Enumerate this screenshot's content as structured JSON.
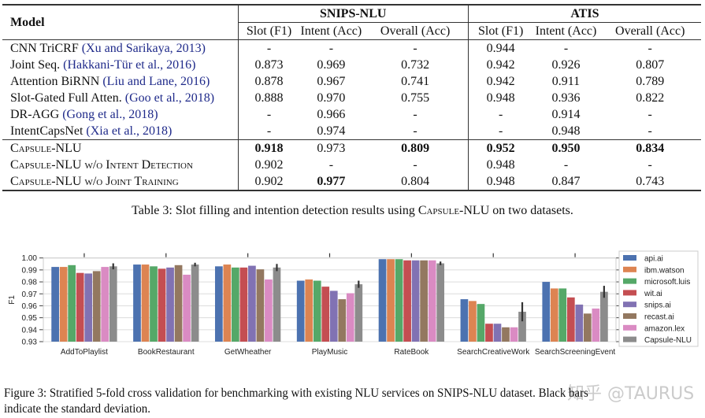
{
  "table": {
    "header": {
      "model": "Model",
      "datasets": [
        "SNIPS-NLU",
        "ATIS"
      ],
      "metrics": [
        "Slot (F1)",
        "Intent (Acc)",
        "Overall (Acc)",
        "Slot (F1)",
        "Intent (Acc)",
        "Overall (Acc)"
      ]
    },
    "rows": [
      {
        "name": "CNN TriCRF",
        "cite": "(Xu and Sarikaya, 2013)",
        "values": [
          "-",
          "-",
          "-",
          "0.944",
          "-",
          "-"
        ],
        "bold": []
      },
      {
        "name": "Joint Seq.",
        "cite": "(Hakkani-Tür et al., 2016)",
        "values": [
          "0.873",
          "0.969",
          "0.732",
          "0.942",
          "0.926",
          "0.807"
        ],
        "bold": []
      },
      {
        "name": "Attention BiRNN",
        "cite": "(Liu and Lane, 2016)",
        "values": [
          "0.878",
          "0.967",
          "0.741",
          "0.942",
          "0.911",
          "0.789"
        ],
        "bold": []
      },
      {
        "name": "Slot-Gated Full Atten.",
        "cite": "(Goo et al., 2018)",
        "values": [
          "0.888",
          "0.970",
          "0.755",
          "0.948",
          "0.936",
          "0.822"
        ],
        "bold": []
      },
      {
        "name": "DR-AGG",
        "cite": "(Gong et al., 2018)",
        "values": [
          "-",
          "0.966",
          "-",
          "-",
          "0.914",
          "-"
        ],
        "bold": []
      },
      {
        "name": "IntentCapsNet",
        "cite": "(Xia et al., 2018)",
        "values": [
          "-",
          "0.974",
          "-",
          "-",
          "0.948",
          "-"
        ],
        "bold": []
      },
      {
        "name": "Capsule-NLU",
        "cite": "",
        "values": [
          "0.918",
          "0.973",
          "0.809",
          "0.952",
          "0.950",
          "0.834"
        ],
        "bold": [
          0,
          2,
          3,
          4,
          5
        ]
      },
      {
        "name": "Capsule-NLU w/o Intent Detection",
        "cite": "",
        "values": [
          "0.902",
          "-",
          "-",
          "0.948",
          "-",
          "-"
        ],
        "bold": []
      },
      {
        "name": "Capsule-NLU w/o Joint Training",
        "cite": "",
        "values": [
          "0.902",
          "0.977",
          "0.804",
          "0.948",
          "0.847",
          "0.743"
        ],
        "bold": [
          1
        ]
      }
    ],
    "caption": "Table 3: Slot filling and intention detection results using Capsule-NLU on two datasets."
  },
  "chart_data": {
    "type": "bar",
    "title": "",
    "xlabel": "",
    "ylabel": "F1",
    "ylim": [
      0.93,
      1.0
    ],
    "yticks": [
      "0.93",
      "0.94",
      "0.95",
      "0.96",
      "0.97",
      "0.98",
      "0.99",
      "1.00"
    ],
    "grid": true,
    "legend": "right",
    "categories": [
      "AddToPlaylist",
      "BookRestaurant",
      "GetWheather",
      "PlayMusic",
      "RateBook",
      "SearchCreativeWork",
      "SearchScreeningEvent"
    ],
    "series": [
      {
        "name": "api.ai",
        "color": "#4C72B0",
        "values": [
          0.9925,
          0.9945,
          0.993,
          0.981,
          0.999,
          0.9655,
          0.98
        ]
      },
      {
        "name": "ibm.watson",
        "color": "#DD8452",
        "values": [
          0.9925,
          0.9945,
          0.9945,
          0.982,
          0.999,
          0.964,
          0.9745
        ]
      },
      {
        "name": "microsoft.luis",
        "color": "#55A868",
        "values": [
          0.994,
          0.993,
          0.992,
          0.981,
          0.999,
          0.9615,
          0.9745
        ]
      },
      {
        "name": "wit.ai",
        "color": "#C44E52",
        "values": [
          0.9875,
          0.991,
          0.992,
          0.976,
          0.998,
          0.945,
          0.967
        ]
      },
      {
        "name": "snips.ai",
        "color": "#8172B3",
        "values": [
          0.987,
          0.992,
          0.9935,
          0.9725,
          0.998,
          0.945,
          0.961
        ]
      },
      {
        "name": "recast.ai",
        "color": "#937860",
        "values": [
          0.989,
          0.994,
          0.9905,
          0.9655,
          0.998,
          0.942,
          0.9535
        ]
      },
      {
        "name": "amazon.lex",
        "color": "#DA8BC3",
        "values": [
          0.9925,
          0.986,
          0.982,
          0.9705,
          0.998,
          0.942,
          0.9577
        ]
      },
      {
        "name": "Capsule-NLU",
        "color": "#8C8C8C",
        "values": [
          0.993,
          0.9945,
          0.992,
          0.978,
          0.9955,
          0.955,
          0.9717
        ],
        "std": [
          0.0025,
          0.0015,
          0.003,
          0.003,
          0.0015,
          0.008,
          0.005
        ]
      }
    ],
    "error_bar_color": "#333333"
  },
  "figure_caption": {
    "line1": "Figure 3: Stratified 5-fold cross validation for benchmarking with existing NLU services on SNIPS-NLU dataset. Black bars",
    "line2": "indicate the standard deviation."
  },
  "watermark": "知乎 @TAURUS"
}
